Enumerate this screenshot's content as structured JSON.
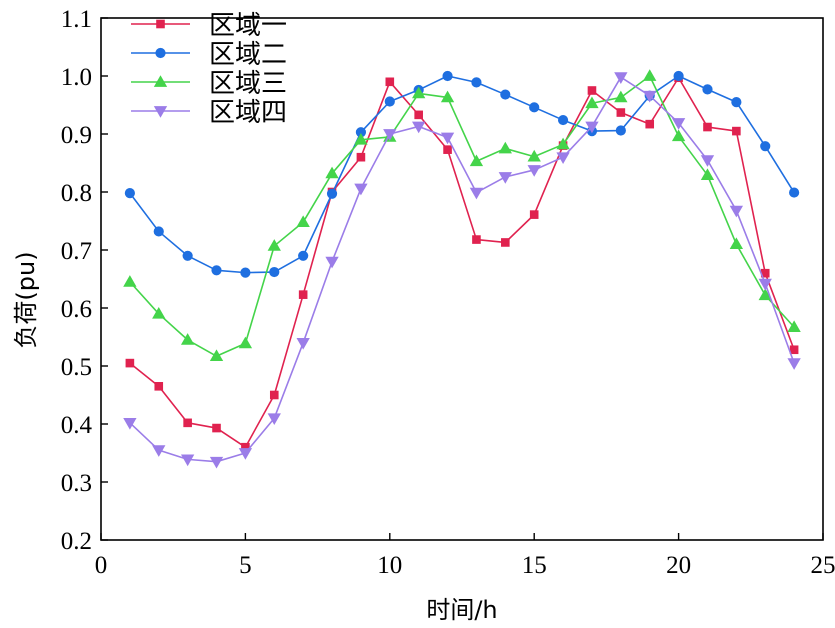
{
  "chart_data": {
    "type": "line",
    "xlabel": "时间/h",
    "ylabel": "负荷(pu)",
    "xlim": [
      0,
      25
    ],
    "ylim": [
      0.2,
      1.1
    ],
    "xticks": [
      0,
      5,
      10,
      15,
      20,
      25
    ],
    "yticks": [
      0.2,
      0.3,
      0.4,
      0.5,
      0.6,
      0.7,
      0.8,
      0.9,
      1.0,
      1.1
    ],
    "xtick_labels": [
      "0",
      "5",
      "10",
      "15",
      "20",
      "25"
    ],
    "ytick_labels": [
      "0.2",
      "0.3",
      "0.4",
      "0.5",
      "0.6",
      "0.7",
      "0.8",
      "0.9",
      "1.0",
      "1.1"
    ],
    "grid": false,
    "legend_position": "top-left",
    "x": [
      1,
      2,
      3,
      4,
      5,
      6,
      7,
      8,
      9,
      10,
      11,
      12,
      13,
      14,
      15,
      16,
      17,
      18,
      19,
      20,
      21,
      22,
      23,
      24
    ],
    "series": [
      {
        "name": "区域一",
        "color": "#e0224f",
        "marker": "square",
        "values": [
          0.505,
          0.465,
          0.402,
          0.393,
          0.36,
          0.45,
          0.623,
          0.8,
          0.86,
          0.99,
          0.933,
          0.873,
          0.718,
          0.713,
          0.761,
          0.88,
          0.975,
          0.937,
          0.917,
          0.997,
          0.912,
          0.905,
          0.66,
          0.528
        ]
      },
      {
        "name": "区域二",
        "color": "#1f6fe0",
        "marker": "circle",
        "values": [
          0.798,
          0.732,
          0.69,
          0.665,
          0.661,
          0.662,
          0.69,
          0.797,
          0.903,
          0.956,
          0.976,
          1.0,
          0.989,
          0.968,
          0.946,
          0.924,
          0.905,
          0.906,
          0.966,
          1.0,
          0.977,
          0.955,
          0.879,
          0.799
        ]
      },
      {
        "name": "区域三",
        "color": "#44d44a",
        "marker": "triangle-up",
        "values": [
          0.645,
          0.59,
          0.545,
          0.517,
          0.539,
          0.707,
          0.748,
          0.832,
          0.89,
          0.895,
          0.97,
          0.963,
          0.853,
          0.875,
          0.861,
          0.882,
          0.953,
          0.963,
          1.0,
          0.896,
          0.829,
          0.71,
          0.622,
          0.567
        ]
      },
      {
        "name": "区域四",
        "color": "#9b7de8",
        "marker": "triangle-down",
        "values": [
          0.402,
          0.355,
          0.339,
          0.335,
          0.35,
          0.41,
          0.54,
          0.68,
          0.806,
          0.9,
          0.913,
          0.894,
          0.799,
          0.826,
          0.838,
          0.86,
          0.913,
          0.998,
          0.966,
          0.919,
          0.855,
          0.768,
          0.642,
          0.505
        ]
      }
    ]
  }
}
